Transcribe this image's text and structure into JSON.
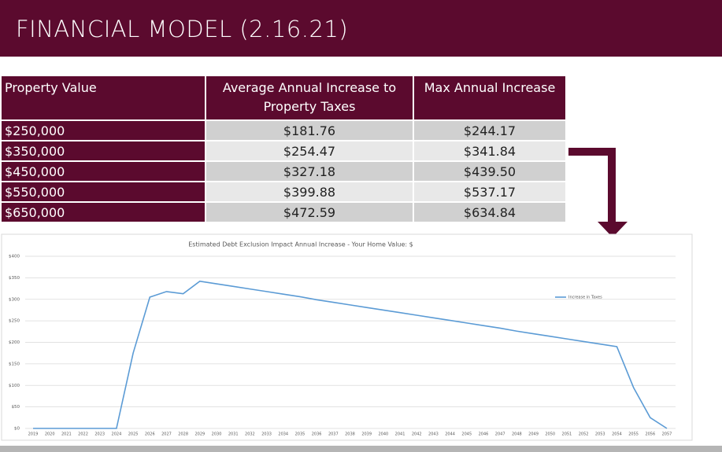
{
  "title": "FINANCIAL MODEL (2.16.21)",
  "table": {
    "header": [
      "Property Value",
      "Average Annual Increase to Property Taxes",
      "Max Annual Increase"
    ],
    "rows": [
      [
        "$250,000",
        "$181.76",
        "$244.17"
      ],
      [
        "$350,000",
        "$254.47",
        "$341.84"
      ],
      [
        "$450,000",
        "$327.18",
        "$439.50"
      ],
      [
        "$550,000",
        "$399.88",
        "$537.17"
      ],
      [
        "$650,000",
        "$472.59",
        "$634.84"
      ]
    ]
  },
  "chart_data": {
    "type": "line",
    "title": "Estimated Debt Exclusion Impact Annual Increase - Your Home Value: $",
    "categories": [
      "2019",
      "2020",
      "2021",
      "2022",
      "2023",
      "2024",
      "2025",
      "2026",
      "2027",
      "2028",
      "2029",
      "2030",
      "2031",
      "2032",
      "2033",
      "2034",
      "2035",
      "2036",
      "2037",
      "2038",
      "2039",
      "2040",
      "2041",
      "2042",
      "2043",
      "2044",
      "2045",
      "2046",
      "2047",
      "2048",
      "2049",
      "2050",
      "2051",
      "2052",
      "2053",
      "2054",
      "2055",
      "2056",
      "2057"
    ],
    "series": [
      {
        "name": "Increase in Taxes",
        "color": "#5b9bd5",
        "values": [
          0,
          0,
          0,
          0,
          0,
          0,
          175,
          305,
          318,
          313,
          342,
          336,
          330,
          324,
          318,
          312,
          306,
          299,
          293,
          287,
          281,
          275,
          269,
          263,
          257,
          251,
          245,
          239,
          233,
          226,
          220,
          214,
          208,
          202,
          196,
          190,
          95,
          25,
          0
        ]
      }
    ],
    "ylim": [
      0,
      400
    ],
    "yticks": [
      {
        "value": 0,
        "label": "$0"
      },
      {
        "value": 50,
        "label": "$50"
      },
      {
        "value": 100,
        "label": "$100"
      },
      {
        "value": 150,
        "label": "$150"
      },
      {
        "value": 200,
        "label": "$200"
      },
      {
        "value": 250,
        "label": "$250"
      },
      {
        "value": 300,
        "label": "$300"
      },
      {
        "value": 350,
        "label": "$350"
      },
      {
        "value": 400,
        "label": "$400"
      }
    ],
    "grid": true,
    "legend": "upper right"
  }
}
